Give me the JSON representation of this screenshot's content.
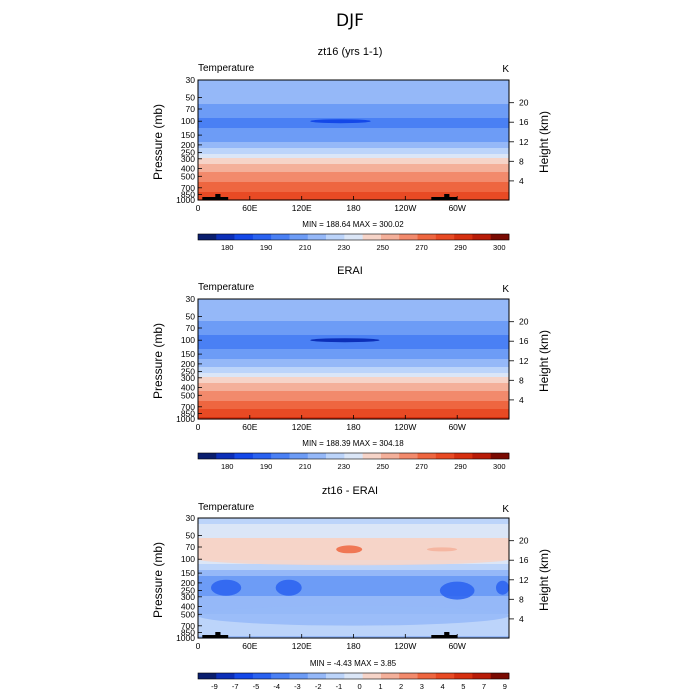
{
  "title": "DJF",
  "colors": {
    "temp_scale": [
      "#0a1e6e",
      "#0c2fb8",
      "#1448e8",
      "#2a62f0",
      "#4a80f4",
      "#6d9cf6",
      "#95b8f8",
      "#bcd4fa",
      "#dbe6f7",
      "#f6d4c8",
      "#f4b09a",
      "#f28a6c",
      "#ee6640",
      "#e84a24",
      "#d63010",
      "#b81c08",
      "#7a0a02"
    ],
    "diff_scale": [
      "#0a1e6e",
      "#0c2fb8",
      "#1448e8",
      "#2a62f0",
      "#4a80f4",
      "#6d9cf6",
      "#95b8f8",
      "#bcd4fa",
      "#dbe6f7",
      "#f6d4c8",
      "#f4b09a",
      "#f28a6c",
      "#ee6640",
      "#e84a24",
      "#d63010",
      "#b81c08",
      "#7a0a02"
    ],
    "land": "#000000"
  },
  "chart_data": [
    {
      "type": "heatmap",
      "title": "zt16 (yrs 1-1)",
      "variable_label": "Temperature",
      "units": "K",
      "ylabel": "Pressure (mb)",
      "ylabel_right": "Height (km)",
      "x_ticks": [
        "0",
        "60E",
        "120E",
        "180",
        "120W",
        "60W"
      ],
      "x_range": [
        0,
        360
      ],
      "y_ticks": [
        "30",
        "50",
        "70",
        "100",
        "150",
        "200",
        "250",
        "300",
        "400",
        "500",
        "700",
        "850",
        "1000"
      ],
      "y_range_mb": [
        1000,
        30
      ],
      "y_scale": "log",
      "height_ticks": [
        "4",
        "8",
        "12",
        "16",
        "20"
      ],
      "stats": "MIN = 188.64   MAX = 300.02",
      "colorbar_labels": [
        "180",
        "190",
        "210",
        "230",
        "250",
        "270",
        "290",
        "300"
      ],
      "profile": {
        "p": [
          30,
          50,
          70,
          100,
          150,
          200,
          250,
          300,
          400,
          500,
          700,
          850,
          1000
        ],
        "t": [
          218,
          214,
          207,
          197,
          203,
          214,
          228,
          241,
          256,
          264,
          276,
          283,
          291
        ]
      },
      "tropo_min_lon": [
        130,
        200
      ],
      "land_segments": [
        [
          5,
          35
        ],
        [
          270,
          300
        ]
      ],
      "scale": "temp"
    },
    {
      "type": "heatmap",
      "title": "ERAI",
      "variable_label": "Temperature",
      "units": "K",
      "ylabel": "Pressure (mb)",
      "ylabel_right": "Height (km)",
      "x_ticks": [
        "0",
        "60E",
        "120E",
        "180",
        "120W",
        "60W"
      ],
      "x_range": [
        0,
        360
      ],
      "y_ticks": [
        "30",
        "50",
        "70",
        "100",
        "150",
        "200",
        "250",
        "300",
        "400",
        "500",
        "700",
        "850",
        "1000"
      ],
      "y_range_mb": [
        1000,
        30
      ],
      "y_scale": "log",
      "height_ticks": [
        "4",
        "8",
        "12",
        "16",
        "20"
      ],
      "stats": "MIN = 188.39   MAX = 304.18",
      "colorbar_labels": [
        "180",
        "190",
        "210",
        "230",
        "250",
        "270",
        "290",
        "300"
      ],
      "profile": {
        "p": [
          30,
          50,
          70,
          100,
          150,
          200,
          250,
          300,
          400,
          500,
          700,
          850,
          1000
        ],
        "t": [
          219,
          214,
          205,
          195,
          203,
          215,
          229,
          242,
          257,
          265,
          277,
          285,
          294
        ]
      },
      "tropo_min_lon": [
        130,
        210
      ],
      "land_segments": [],
      "scale": "temp"
    },
    {
      "type": "heatmap",
      "title": "zt16 - ERAI",
      "variable_label": "Temperature",
      "units": "K",
      "ylabel": "Pressure (mb)",
      "ylabel_right": "Height (km)",
      "x_ticks": [
        "0",
        "60E",
        "120E",
        "180",
        "120W",
        "60W"
      ],
      "x_range": [
        0,
        360
      ],
      "y_ticks": [
        "30",
        "50",
        "70",
        "100",
        "150",
        "200",
        "250",
        "300",
        "400",
        "500",
        "700",
        "850",
        "1000"
      ],
      "y_range_mb": [
        1000,
        30
      ],
      "y_scale": "log",
      "height_ticks": [
        "4",
        "8",
        "12",
        "16",
        "20"
      ],
      "stats": "MIN =   -4.43   MAX =    3.85",
      "colorbar_labels": [
        "-9",
        "-7",
        "-5",
        "-4",
        "-3",
        "-2",
        "-1",
        "0",
        "1",
        "2",
        "3",
        "4",
        "5",
        "7",
        "9"
      ],
      "profile": {
        "p": [
          30,
          50,
          70,
          100,
          150,
          200,
          250,
          300,
          400,
          500,
          700,
          850,
          1000
        ],
        "t": [
          -0.5,
          0.8,
          2.0,
          1.2,
          -1.8,
          -2.6,
          -2.4,
          -2.0,
          -1.4,
          -1.0,
          -0.6,
          -0.8,
          -1.2
        ]
      },
      "land_segments": [
        [
          5,
          35
        ],
        [
          270,
          300
        ]
      ],
      "scale": "diff"
    }
  ]
}
